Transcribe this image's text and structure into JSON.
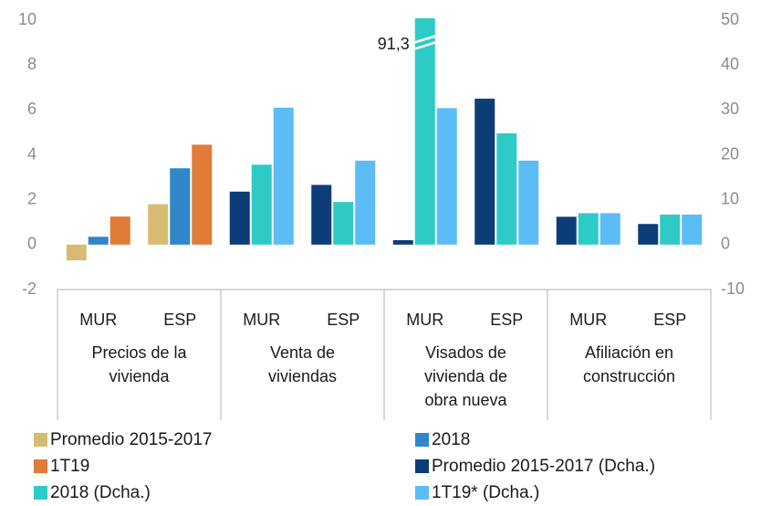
{
  "chart_data": {
    "type": "bar",
    "categories": [
      "MUR",
      "ESP",
      "MUR",
      "ESP",
      "MUR",
      "ESP",
      "MUR",
      "ESP"
    ],
    "groups": [
      [
        "Precios de la",
        "vivienda"
      ],
      [
        "Venta de",
        "viviendas"
      ],
      [
        "Visados de",
        "vivienda de",
        "obra nueva"
      ],
      [
        "Afiliación en",
        "construcción"
      ]
    ],
    "series": [
      {
        "name": "Promedio 2015-2017",
        "color": "#d8bb72",
        "values": [
          -0.7,
          1.8,
          null,
          null,
          null,
          null,
          null,
          null
        ]
      },
      {
        "name": "2018",
        "color": "#2f87c9",
        "values": [
          0.35,
          3.4,
          null,
          null,
          null,
          null,
          null,
          null
        ]
      },
      {
        "name": "1T19",
        "color": "#e07b38",
        "values": [
          1.25,
          4.45,
          null,
          null,
          null,
          null,
          null,
          null
        ]
      },
      {
        "name": "Promedio 2015-2017 (Dcha.)",
        "color": "#0c3d78",
        "axis": "y2",
        "values": [
          null,
          null,
          11.8,
          13.3,
          1,
          32.5,
          6.2,
          4.6
        ]
      },
      {
        "name": "2018 (Dcha.)",
        "color": "#2ecbc6",
        "axis": "y2",
        "values": [
          null,
          null,
          17.8,
          9.5,
          91.3,
          24.8,
          7,
          6.7
        ],
        "value_labels": [
          null,
          null,
          null,
          null,
          "91,3",
          null,
          null,
          null
        ]
      },
      {
        "name": "1T19* (Dcha.)",
        "color": "#5cbcf5",
        "axis": "y2",
        "values": [
          null,
          null,
          30.5,
          18.7,
          30.4,
          18.7,
          7,
          6.7
        ]
      }
    ],
    "ylim": [
      -2,
      10
    ],
    "yticks": [
      -2,
      0,
      2,
      4,
      6,
      8,
      10
    ],
    "y2lim": [
      -10,
      50
    ],
    "y2ticks": [
      -10,
      0,
      10,
      20,
      30,
      40,
      50
    ],
    "grid": false
  }
}
